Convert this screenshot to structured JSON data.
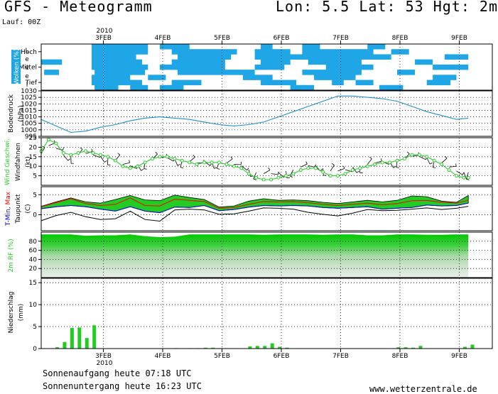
{
  "header": {
    "title": "GFS - Meteogramm",
    "coords": "Lon: 5.5  Lat: 53  Hgt: 2m",
    "run": "Lauf: 00Z"
  },
  "footer": {
    "sunrise": "Sonnenaufgang heute 07:18 UTC",
    "sunset": "Sonnenuntergang heute 16:23 UTC",
    "credit": "www.wetterzentrale.de"
  },
  "colors": {
    "cloud": "#1ea6e6",
    "pressure": "#1e90c8",
    "wind": "#2ccc2c",
    "tmax": "#ff0000",
    "tmin": "#0000dd",
    "band": "#22cc22",
    "dew": "#000000",
    "precip": "#22cc22"
  },
  "chart_data": [
    {
      "type": "heatmap",
      "panel": "clouds",
      "title": "",
      "ylabel_prefix": "Wolken",
      "ylabel_suffix": "(%)",
      "side_label": "Level",
      "levels": [
        "Hoch",
        "Mittel",
        "Tief"
      ],
      "x_year": "2010",
      "x_ticks": [
        "3FEB",
        "4FEB",
        "5FEB",
        "6FEB",
        "7FEB",
        "8FEB",
        "9FEB"
      ],
      "time_range_days": [
        0,
        7.2
      ]
    },
    {
      "type": "line",
      "panel": "pressure",
      "ylabel": "Bodendruck",
      "unit": "(hPa)",
      "ylim": [
        995,
        1030
      ],
      "yticks": [
        "1030",
        "1025",
        "1020",
        "1015",
        "1010",
        "1005",
        "1000",
        "995"
      ],
      "x": [
        0,
        0.25,
        0.5,
        0.75,
        1.0,
        1.25,
        1.5,
        1.75,
        2.0,
        2.25,
        2.5,
        2.75,
        3.0,
        3.25,
        3.5,
        3.75,
        4.0,
        4.25,
        4.5,
        4.75,
        5.0,
        5.25,
        5.5,
        5.75,
        6.0,
        6.25,
        6.5,
        6.75,
        7.0,
        7.2
      ],
      "values": [
        1008,
        1003,
        998,
        999,
        1002,
        1004,
        1007,
        1009,
        1010,
        1009,
        1008,
        1006,
        1004,
        1003,
        1004,
        1006,
        1010,
        1014,
        1018,
        1022,
        1026,
        1026,
        1025,
        1024,
        1022,
        1018,
        1014,
        1011,
        1008,
        1009
      ]
    },
    {
      "type": "line",
      "panel": "wind",
      "ylabel_prefix": "Wind Geschwi.",
      "ylabel": "Windfahnen",
      "unit": "(kt)",
      "ylim": [
        0,
        25
      ],
      "yticks": [
        "25",
        "20",
        "15",
        "10",
        "5"
      ],
      "x": [
        0,
        0.125,
        0.25,
        0.375,
        0.5,
        0.625,
        0.75,
        0.875,
        1.0,
        1.125,
        1.25,
        1.375,
        1.5,
        1.625,
        1.75,
        1.875,
        2.0,
        2.125,
        2.25,
        2.375,
        2.5,
        2.625,
        2.75,
        2.875,
        3.0,
        3.125,
        3.25,
        3.375,
        3.5,
        3.625,
        3.75,
        3.875,
        4.0,
        4.125,
        4.25,
        4.375,
        4.5,
        4.625,
        4.75,
        4.875,
        5.0,
        5.125,
        5.25,
        5.375,
        5.5,
        5.625,
        5.75,
        5.875,
        6.0,
        6.125,
        6.25,
        6.375,
        6.5,
        6.625,
        6.75,
        6.875,
        7.0,
        7.125,
        7.2
      ],
      "values": [
        18,
        24,
        22,
        17,
        16,
        17,
        18,
        17,
        16,
        15,
        13,
        10,
        9,
        10,
        12,
        14,
        15,
        15,
        14,
        13,
        12,
        11,
        12,
        12,
        12,
        11,
        10,
        9,
        6,
        4,
        3,
        3,
        4,
        5,
        6,
        8,
        9,
        9,
        7,
        5,
        5,
        6,
        8,
        9,
        10,
        11,
        12,
        12,
        13,
        14,
        16,
        16,
        15,
        13,
        11,
        8,
        5,
        4,
        4
      ]
    },
    {
      "type": "area",
      "panel": "temperature",
      "ylabel_parts": [
        "T-",
        "Min",
        ", ",
        "Max"
      ],
      "ylabel2": "Taupunkt",
      "unit": "(C)",
      "ylim": [
        -4,
        7
      ],
      "yticks": [
        "5",
        "0"
      ],
      "x": [
        0,
        0.25,
        0.5,
        0.75,
        1.0,
        1.25,
        1.5,
        1.75,
        2.0,
        2.25,
        2.5,
        2.75,
        3.0,
        3.25,
        3.5,
        3.75,
        4.0,
        4.25,
        4.5,
        4.75,
        5.0,
        5.25,
        5.5,
        5.75,
        6.0,
        6.25,
        6.5,
        6.75,
        7.0,
        7.2
      ],
      "series": [
        {
          "name": "Min",
          "values": [
            1.5,
            2.0,
            2.3,
            2.0,
            1.4,
            0.9,
            2.0,
            0.9,
            0.5,
            1.9,
            1.8,
            2.3,
            1.0,
            1.3,
            1.9,
            2.3,
            2.2,
            2.3,
            2.2,
            1.8,
            1.6,
            1.8,
            2.0,
            1.4,
            1.6,
            1.8,
            2.4,
            2.2,
            2.3,
            2.9
          ]
        },
        {
          "name": "Max",
          "values": [
            2.0,
            3.0,
            4.0,
            2.8,
            2.3,
            2.6,
            4.2,
            2.3,
            2.2,
            3.9,
            3.6,
            3.3,
            1.6,
            1.8,
            2.6,
            3.3,
            3.2,
            3.3,
            3.0,
            2.6,
            2.3,
            2.6,
            2.9,
            2.5,
            2.8,
            3.5,
            3.6,
            3.1,
            2.9,
            3.6
          ]
        },
        {
          "name": "Band",
          "values": [
            2.1,
            3.2,
            4.2,
            3.2,
            2.9,
            3.8,
            4.8,
            3.7,
            3.5,
            4.9,
            4.3,
            3.8,
            1.9,
            2.2,
            3.4,
            4.0,
            3.6,
            3.7,
            3.5,
            3.1,
            2.8,
            3.2,
            3.6,
            3.2,
            3.6,
            4.7,
            4.5,
            3.4,
            3.1,
            4.8
          ]
        },
        {
          "name": "Taupunkt",
          "values": [
            -1.5,
            -0.2,
            0.6,
            -0.5,
            -1.2,
            -1.0,
            0.9,
            -1.2,
            -1.6,
            1.2,
            1.4,
            1.2,
            0.1,
            0.2,
            0.9,
            1.7,
            1.6,
            1.4,
            0.6,
            0.1,
            -0.3,
            0.4,
            1.3,
            1.0,
            1.1,
            1.4,
            1.7,
            1.3,
            1.6,
            2.1
          ]
        }
      ]
    },
    {
      "type": "area",
      "panel": "humidity",
      "ylabel": "2m RF",
      "unit": "(%)",
      "ylim": [
        0,
        100
      ],
      "yticks": [
        "80",
        "60",
        "40",
        "20"
      ],
      "x": [
        0,
        0.25,
        0.5,
        0.75,
        1.0,
        1.25,
        1.5,
        1.75,
        2.0,
        2.25,
        2.5,
        2.75,
        3.0,
        3.25,
        3.5,
        3.75,
        4.0,
        4.25,
        4.5,
        4.75,
        5.0,
        5.25,
        5.5,
        5.75,
        6.0,
        6.25,
        6.5,
        6.75,
        7.0,
        7.2
      ],
      "values": [
        95,
        95,
        95,
        92,
        93,
        93,
        95,
        91,
        89,
        90,
        95,
        95,
        95,
        95,
        95,
        94,
        95,
        95,
        95,
        94,
        95,
        95,
        93,
        93,
        95,
        95,
        94,
        94,
        95,
        95
      ]
    },
    {
      "type": "bar",
      "panel": "precipitation",
      "ylabel": "Niederschlag",
      "unit": "(mm)",
      "ylim": [
        0,
        16
      ],
      "yticks": [
        "15",
        "10",
        "5",
        "0"
      ],
      "x_year": "2010",
      "x_ticks": [
        "3FEB",
        "4FEB",
        "5FEB",
        "6FEB",
        "7FEB",
        "8FEB",
        "9FEB"
      ],
      "x": [
        0,
        0.125,
        0.25,
        0.375,
        0.5,
        0.625,
        2.0,
        2.25,
        2.375,
        2.5,
        2.625,
        2.75,
        3.25,
        3.375,
        3.5,
        3.625,
        3.75,
        3.875,
        5.75,
        5.875,
        6.0,
        6.125,
        6.875,
        7.0
      ],
      "values": [
        0.3,
        1.5,
        4.7,
        4.8,
        2.4,
        5.3,
        0.1,
        0.1,
        0.1,
        0.2,
        0.2,
        0.1,
        0.5,
        0.6,
        0.6,
        1.2,
        0.4,
        0.2,
        0.3,
        0.3,
        0.2,
        0.6,
        0.4,
        0.9
      ]
    }
  ]
}
